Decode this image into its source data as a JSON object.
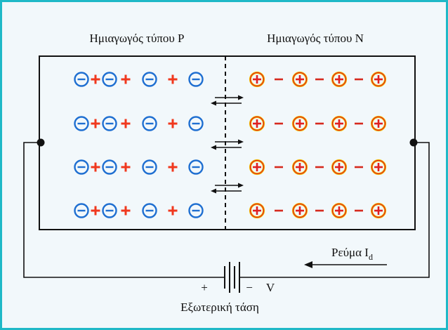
{
  "labels": {
    "p_type": "Ημιαγωγός τύπου P",
    "n_type": "Ημιαγωγός τύπου N",
    "current": "Ρεύμα I",
    "current_sub": "d",
    "voltage_source": "Εξωτερική τάση",
    "plus_terminal": "+",
    "minus_terminal": "−",
    "voltage_symbol": "V"
  },
  "symbols": {
    "negative_ion": "⊖",
    "positive_ion": "⊕",
    "hole": "+",
    "electron": "−"
  },
  "colors": {
    "frame_border": "#1fb9c7",
    "background": "#f2f8fb",
    "p_ion": "#1f6fd1",
    "hole": "#f0381e",
    "n_ion_ring": "#f3c200",
    "n_ion_plus": "#e02020",
    "electron": "#d62a1e",
    "wire": "#111111"
  },
  "structure": {
    "rows": 4,
    "ions_per_row_each_side": 4,
    "arrow_pairs": 3
  }
}
